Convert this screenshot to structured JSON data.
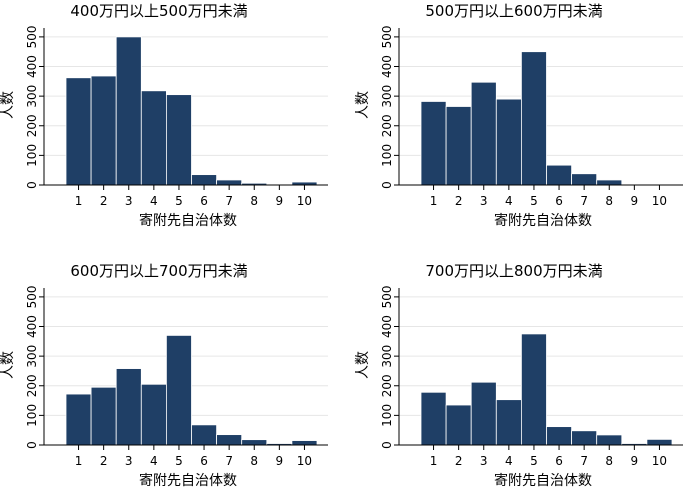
{
  "colors": {
    "bar_fill": "#1f3f66",
    "bar_edge": "#ffffff",
    "grid": "#e6e6e6",
    "axis": "#000000"
  },
  "chart_data": [
    {
      "type": "bar",
      "title": "400万円以上500万円未満",
      "xlabel": "寄附先自治体数",
      "ylabel": "人数",
      "categories": [
        "1",
        "2",
        "3",
        "4",
        "5",
        "6",
        "7",
        "8",
        "9",
        "10"
      ],
      "values": [
        362,
        368,
        500,
        318,
        305,
        35,
        17,
        6,
        0,
        10
      ],
      "yticks": [
        0,
        100,
        200,
        300,
        400,
        500
      ],
      "ylim": [
        0,
        530
      ],
      "grid": true
    },
    {
      "type": "bar",
      "title": "500万円以上600万円未満",
      "xlabel": "寄附先自治体数",
      "ylabel": "人数",
      "categories": [
        "1",
        "2",
        "3",
        "4",
        "5",
        "6",
        "7",
        "8",
        "9",
        "10"
      ],
      "values": [
        282,
        265,
        347,
        290,
        450,
        67,
        38,
        17,
        0,
        3
      ],
      "yticks": [
        0,
        100,
        200,
        300,
        400,
        500
      ],
      "ylim": [
        0,
        530
      ],
      "grid": true
    },
    {
      "type": "bar",
      "title": "600万円以上700万円未満",
      "xlabel": "寄附先自治体数",
      "ylabel": "人数",
      "categories": [
        "1",
        "2",
        "3",
        "4",
        "5",
        "6",
        "7",
        "8",
        "9",
        "10"
      ],
      "values": [
        172,
        195,
        258,
        205,
        370,
        68,
        35,
        18,
        5,
        15
      ],
      "yticks": [
        0,
        100,
        200,
        300,
        400,
        500
      ],
      "ylim": [
        0,
        530
      ],
      "grid": true
    },
    {
      "type": "bar",
      "title": "700万円以上800万円未満",
      "xlabel": "寄附先自治体数",
      "ylabel": "人数",
      "categories": [
        "1",
        "2",
        "3",
        "4",
        "5",
        "6",
        "7",
        "8",
        "9",
        "10"
      ],
      "values": [
        178,
        135,
        212,
        153,
        375,
        62,
        48,
        34,
        5,
        19
      ],
      "yticks": [
        0,
        100,
        200,
        300,
        400,
        500
      ],
      "ylim": [
        0,
        530
      ],
      "grid": true
    }
  ]
}
